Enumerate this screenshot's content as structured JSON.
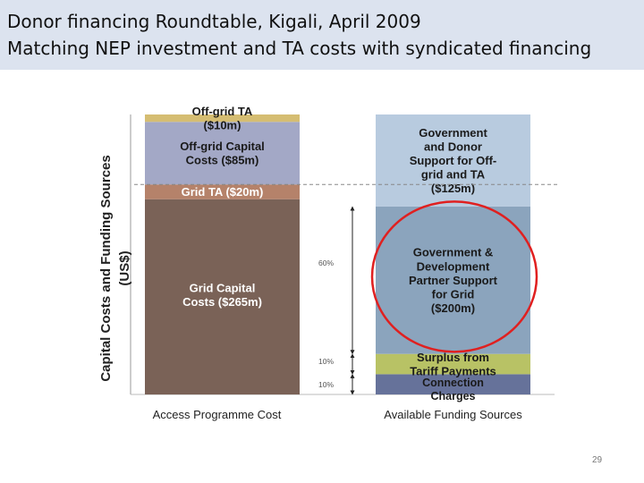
{
  "title": {
    "line1": "Donor financing Roundtable, Kigali, April 2009",
    "line2": "Matching NEP investment and TA costs with syndicated financing"
  },
  "page_number": "29",
  "chart_data": {
    "type": "bar",
    "stacking": "stacked",
    "ylabel": "Capital Costs and Funding Sources (US$)",
    "categories": [
      "Access Programme Cost",
      "Available Funding Sources"
    ],
    "stacks": [
      {
        "category": "Access Programme Cost",
        "segments": [
          {
            "label": [
              "Grid Capital",
              "Costs ($265m)"
            ],
            "value": 265,
            "color": "#7a6257"
          },
          {
            "label": [
              "Grid TA ($20m)"
            ],
            "value": 20,
            "color": "#b5826a"
          },
          {
            "label": [
              "Off-grid Capital",
              "Costs ($85m)"
            ],
            "value": 85,
            "color": "#a3a8c6"
          },
          {
            "label": [
              "Off-grid TA",
              "($10m)"
            ],
            "value": 10,
            "color": "#d5bd72"
          }
        ]
      },
      {
        "category": "Available Funding Sources",
        "segments": [
          {
            "label": [
              "Connection",
              "Charges"
            ],
            "value": 27.5,
            "color": "#66729a"
          },
          {
            "label": [
              "Surplus from",
              "Tariff Payments"
            ],
            "value": 27.5,
            "color": "#b8c265"
          },
          {
            "label": [
              "Government &",
              "Development",
              "Partner Support",
              "for Grid",
              "($200m)"
            ],
            "value": 200,
            "color": "#8ba4bd"
          },
          {
            "label": [
              "Government",
              "and Donor",
              "Support for Off-",
              "grid and TA",
              "($125m)"
            ],
            "value": 125,
            "color": "#b8cbdf"
          }
        ]
      }
    ],
    "annotations": [
      "60%",
      "10%",
      "10%"
    ],
    "highlight": {
      "shape": "ellipse",
      "color": "#e02020",
      "target": "Government & Development Partner Support for Grid ($200m)"
    },
    "grid": false
  }
}
